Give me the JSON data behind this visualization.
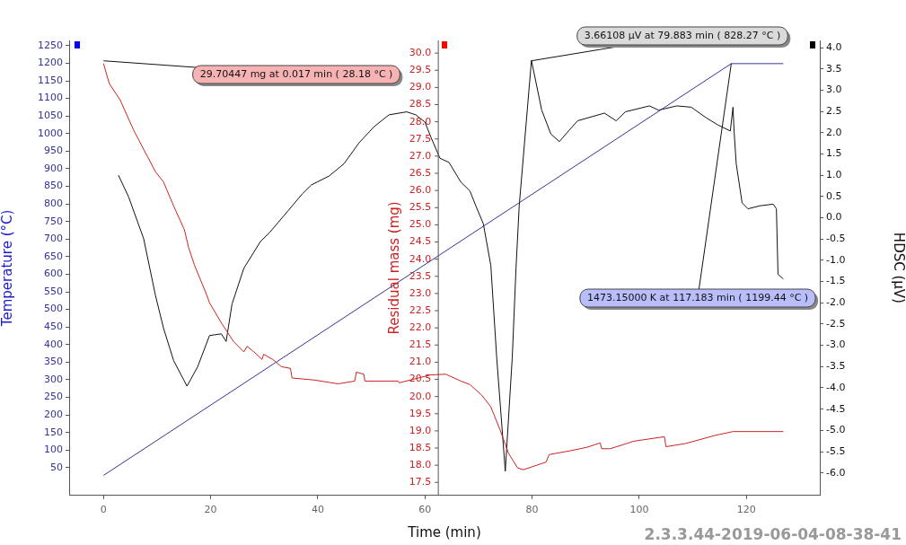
{
  "chart_data": {
    "type": "line",
    "xlabel": "Time (min)",
    "ylabel": "Temperature (°C)",
    "y2label": "Residual mass (mg)",
    "y3label": "HDSC (µV)",
    "xlim": [
      -6.4,
      133.7
    ],
    "xticks": [
      0,
      20,
      40,
      60,
      80,
      100,
      120
    ],
    "ylim": [
      -29,
      1265
    ],
    "yticks": [
      50,
      100,
      150,
      200,
      250,
      300,
      350,
      400,
      450,
      500,
      550,
      600,
      650,
      700,
      750,
      800,
      850,
      900,
      950,
      1000,
      1050,
      1100,
      1150,
      1200,
      1250
    ],
    "y2lim": [
      17.12,
      30.37
    ],
    "y2ticks": [
      17.5,
      {
        "value": 18,
        "label": "18.0"
      },
      18.5,
      {
        "value": 19,
        "label": "19.0"
      },
      19.5,
      {
        "value": 20,
        "label": "20.0"
      },
      20.5,
      {
        "value": 21,
        "label": "21.0"
      },
      21.5,
      {
        "value": 22,
        "label": "22.0"
      },
      22.5,
      {
        "value": 23,
        "label": "23.0"
      },
      23.5,
      {
        "value": 24,
        "label": "24.0"
      },
      24.5,
      {
        "value": 25,
        "label": "25.0"
      },
      25.5,
      {
        "value": 26,
        "label": "26.0"
      },
      26.5,
      {
        "value": 27,
        "label": "27.0"
      },
      27.5,
      {
        "value": 28,
        "label": "28.0"
      },
      28.5,
      {
        "value": 29,
        "label": "29.0"
      },
      29.5,
      {
        "value": 30,
        "label": "30.0"
      }
    ],
    "y3lim": [
      -6.53,
      4.17
    ],
    "y3ticks": [
      {
        "value": -6,
        "label": "-6.0"
      },
      -5.5,
      {
        "value": -5,
        "label": "-5.0"
      },
      -4.5,
      {
        "value": -4,
        "label": "-4.0"
      },
      -3.5,
      {
        "value": -3,
        "label": "-3.0"
      },
      -2.5,
      {
        "value": -2,
        "label": "-2.0"
      },
      -1.5,
      {
        "value": -1,
        "label": "-1.0"
      },
      -0.5,
      {
        "value": 0,
        "label": "0.0"
      },
      0.5,
      {
        "value": 1,
        "label": "1.0"
      },
      1.5,
      {
        "value": 2,
        "label": "2.0"
      },
      2.5,
      {
        "value": 3,
        "label": "3.0"
      },
      3.5,
      {
        "value": 4,
        "label": "4.0"
      }
    ],
    "grid": false,
    "legend": false,
    "marker": "none",
    "series": [
      {
        "color": "#333399",
        "axis": "y",
        "x": [
          0.017,
          117.183,
          126.9
        ],
        "values": [
          28,
          1199,
          1199
        ]
      },
      {
        "color": "#cc2222",
        "axis": "y2",
        "x": [
          0.017,
          0.28,
          1.1,
          3.1,
          5.6,
          7.5,
          9.7,
          11.2,
          13.1,
          15.1,
          15.9,
          17.0,
          19.3,
          19.8,
          22.1,
          24.3,
          26.2,
          26.8,
          28.1,
          29.6,
          29.9,
          31.6,
          33.2,
          34.9,
          35.2,
          39.4,
          43.8,
          46.9,
          47.2,
          48.6,
          48.8,
          55.0,
          55.2,
          61.1,
          63.9,
          66.7,
          68.4,
          70.6,
          72.3,
          74.0,
          75.6,
          77.3,
          78.4,
          82.6,
          83.2,
          87.1,
          90.2,
          92.7,
          93.0,
          94.6,
          99.0,
          104.7,
          105.0,
          108.6,
          114.2,
          117.5,
          126.9
        ],
        "values": [
          29.7,
          29.55,
          29.11,
          28.64,
          27.77,
          27.2,
          26.55,
          26.25,
          25.55,
          24.86,
          24.34,
          23.82,
          22.95,
          22.73,
          22.12,
          21.6,
          21.3,
          21.46,
          21.3,
          21.08,
          21.23,
          21.08,
          20.87,
          20.82,
          20.54,
          20.48,
          20.37,
          20.45,
          20.71,
          20.65,
          20.45,
          20.45,
          20.4,
          20.63,
          20.65,
          20.45,
          20.35,
          20.04,
          19.7,
          19.04,
          18.35,
          17.92,
          17.87,
          18.09,
          18.31,
          18.42,
          18.52,
          18.65,
          18.48,
          18.48,
          18.7,
          18.83,
          18.54,
          18.63,
          18.87,
          18.98,
          18.98
        ]
      },
      {
        "color": "#111111",
        "axis": "y3",
        "x": [
          2.8,
          4.7,
          7.5,
          9.7,
          11.2,
          13.1,
          15.6,
          17.6,
          19.8,
          22.0,
          22.9,
          24.0,
          26.2,
          29.3,
          31.0,
          34.3,
          37.1,
          38.8,
          42.1,
          44.9,
          47.7,
          50.5,
          53.3,
          56.6,
          58.3,
          60.0,
          61.1,
          62.8,
          64.5,
          66.7,
          68.4,
          69.5,
          70.9,
          72.3,
          73.4,
          75.0,
          76.3,
          77.0,
          77.6,
          79.883,
          81.8,
          83.5,
          85.1,
          86.8,
          88.5,
          93.5,
          95.7,
          97.4,
          101.9,
          103.6,
          107.0,
          109.7,
          112.5,
          114.7,
          117.0,
          117.5,
          117.7,
          118.1,
          119.2,
          120.3,
          122.5,
          125.0,
          125.6,
          125.9,
          126.9
        ],
        "values": [
          1.0,
          0.49,
          -0.49,
          -1.82,
          -2.59,
          -3.36,
          -3.96,
          -3.5,
          -2.77,
          -2.73,
          -2.91,
          -2.03,
          -1.19,
          -0.56,
          -0.35,
          0.14,
          0.56,
          0.77,
          0.98,
          1.27,
          1.76,
          2.14,
          2.42,
          2.49,
          2.42,
          2.25,
          1.9,
          1.4,
          1.3,
          0.84,
          0.63,
          0.28,
          -0.14,
          -1.12,
          -3.29,
          -5.96,
          -3.29,
          -1.19,
          0.28,
          3.7,
          2.53,
          1.97,
          1.79,
          2.04,
          2.28,
          2.46,
          2.28,
          2.49,
          2.63,
          2.53,
          2.63,
          2.6,
          2.35,
          2.18,
          2.04,
          2.6,
          2.04,
          1.27,
          0.35,
          0.21,
          0.28,
          0.32,
          0.21,
          -1.33,
          -1.44
        ]
      }
    ],
    "annotations": [
      {
        "text": "1473.15000 K at 117.183 min ( 1199.44 °C )",
        "x": 117.183,
        "y": 1199.44
      },
      {
        "text": "29.70447 mg at 0.017 min ( 28.18 °C )",
        "x": 0.017,
        "y": 1207
      },
      {
        "text": "3.66108 µV at 79.883 min ( 828.27 °C )",
        "x": 79.883,
        "y": 1207
      },
      "2.3.3.44-2019-06-04-08-38-41"
    ]
  }
}
